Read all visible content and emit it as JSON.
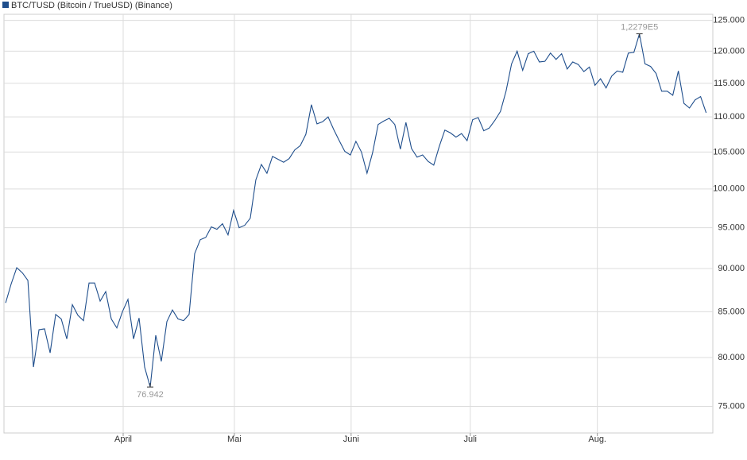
{
  "chart_data": {
    "type": "line",
    "log_scale": true,
    "grid": true,
    "legend": "top-left",
    "xlim": [
      -0.3,
      127.2
    ],
    "xticks": [
      {
        "value": 21.14,
        "label": "April"
      },
      {
        "value": 41.14,
        "label": "Mai"
      },
      {
        "value": 62.14,
        "label": "Juni"
      },
      {
        "value": 83.57,
        "label": "Juli"
      },
      {
        "value": 106.43,
        "label": "Aug."
      }
    ],
    "ylim": [
      72400,
      126000
    ],
    "yticks": [
      {
        "value": 75000,
        "label": "75.000"
      },
      {
        "value": 80000,
        "label": "80.000"
      },
      {
        "value": 85000,
        "label": "85.000"
      },
      {
        "value": 90000,
        "label": "90.000"
      },
      {
        "value": 95000,
        "label": "95.000"
      },
      {
        "value": 100000,
        "label": "100.000"
      },
      {
        "value": 105000,
        "label": "105.000"
      },
      {
        "value": 110000,
        "label": "110.000"
      },
      {
        "value": 115000,
        "label": "115.000"
      },
      {
        "value": 120000,
        "label": "120.000"
      },
      {
        "value": 125000,
        "label": "125.000"
      }
    ],
    "series": [
      {
        "name": "BTC/TUSD (Bitcoin / TrueUSD) (Binance)",
        "color": "#1f4e8c",
        "values": [
          86000,
          88200,
          90100,
          89500,
          88600,
          79000,
          83000,
          83100,
          80500,
          84700,
          84200,
          82000,
          85800,
          84600,
          84000,
          88300,
          88300,
          86200,
          87300,
          84200,
          83200,
          85000,
          86400,
          82000,
          84300,
          79000,
          76942,
          82400,
          79600,
          83900,
          85200,
          84200,
          84000,
          84700,
          91800,
          93500,
          93800,
          95100,
          94800,
          95500,
          94100,
          97200,
          95000,
          95300,
          96200,
          101200,
          103300,
          102100,
          104400,
          104000,
          103600,
          104100,
          105300,
          105900,
          107500,
          111800,
          109000,
          109300,
          110000,
          108200,
          106600,
          105100,
          104600,
          106500,
          105000,
          102100,
          104900,
          108900,
          109400,
          109800,
          108900,
          105400,
          109200,
          105500,
          104300,
          104600,
          103700,
          103200,
          105800,
          108100,
          107700,
          107100,
          107600,
          106600,
          109600,
          109900,
          108000,
          108400,
          109500,
          110800,
          113800,
          118000,
          120000,
          117000,
          119600,
          120000,
          118300,
          118400,
          119700,
          118700,
          119600,
          117200,
          118300,
          117900,
          116800,
          117500,
          114700,
          115700,
          114300,
          116100,
          116900,
          116700,
          119700,
          119800,
          122790,
          118000,
          117600,
          116500,
          113800,
          113800,
          113200,
          116900,
          112000,
          111300,
          112500,
          113000,
          110600
        ],
        "value_labels": [
          null,
          null,
          null,
          null,
          null,
          null,
          null,
          null,
          null,
          null,
          null,
          null,
          null,
          null,
          null,
          null,
          null,
          null,
          null,
          null,
          null,
          null,
          null,
          null,
          null,
          null,
          "76.942",
          null,
          null,
          null,
          null,
          null,
          null,
          null,
          null,
          null,
          null,
          null,
          null,
          null,
          null,
          null,
          null,
          null,
          null,
          null,
          null,
          null,
          null,
          null,
          null,
          null,
          null,
          null,
          null,
          null,
          null,
          null,
          null,
          null,
          null,
          null,
          null,
          null,
          null,
          null,
          null,
          null,
          null,
          null,
          null,
          null,
          null,
          null,
          null,
          null,
          null,
          null,
          null,
          null,
          null,
          null,
          null,
          null,
          null,
          null,
          null,
          null,
          null,
          null,
          null,
          null,
          null,
          null,
          null,
          null,
          null,
          null,
          null,
          null,
          null,
          null,
          null,
          null,
          null,
          null,
          null,
          null,
          null,
          null,
          null,
          null,
          null,
          null,
          "1,2279E5",
          null,
          null,
          null,
          null,
          null,
          null,
          null,
          null,
          null,
          null,
          null,
          null
        ]
      }
    ]
  }
}
